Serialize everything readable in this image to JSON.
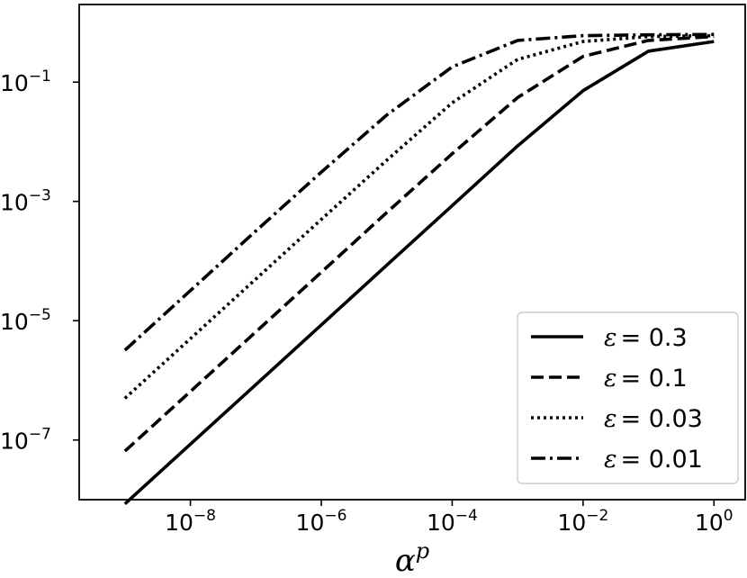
{
  "chart_data": {
    "type": "line",
    "xscale": "log",
    "yscale": "log",
    "xlim": [
      2e-10,
      3
    ],
    "ylim": [
      1e-08,
      2
    ],
    "xlabel": {
      "base": "α",
      "sup": "p"
    },
    "ylabel": "",
    "title": "",
    "grid": false,
    "legend_position": "lower-right",
    "x_ticks": [
      {
        "value": 1e-08,
        "base": "10",
        "exp": "−8"
      },
      {
        "value": 1e-06,
        "base": "10",
        "exp": "−6"
      },
      {
        "value": 0.0001,
        "base": "10",
        "exp": "−4"
      },
      {
        "value": 0.01,
        "base": "10",
        "exp": "−2"
      },
      {
        "value": 1,
        "base": "10",
        "exp": "0"
      }
    ],
    "y_ticks": [
      {
        "value": 0.1,
        "base": "10",
        "exp": "−1"
      },
      {
        "value": 0.001,
        "base": "10",
        "exp": "−3"
      },
      {
        "value": 1e-05,
        "base": "10",
        "exp": "−5"
      },
      {
        "value": 1e-07,
        "base": "10",
        "exp": "−7"
      }
    ],
    "x": [
      1e-09,
      1e-08,
      1e-07,
      1e-06,
      1e-05,
      0.0001,
      0.001,
      0.01,
      0.1,
      1
    ],
    "series": [
      {
        "name": "ε = 0.3",
        "eps_label": "ε",
        "value_label": "= 0.3",
        "dash": "solid",
        "values": [
          8.5e-09,
          8.5e-08,
          8.5e-07,
          8.5e-06,
          8.5e-05,
          0.00085,
          0.0085,
          0.072,
          0.33,
          0.48
        ]
      },
      {
        "name": "ε = 0.1",
        "eps_label": "ε",
        "value_label": "= 0.1",
        "dash": "dashed",
        "values": [
          6.5e-08,
          6.5e-07,
          6.5e-06,
          6.5e-05,
          0.00065,
          0.0063,
          0.055,
          0.27,
          0.5,
          0.58
        ]
      },
      {
        "name": "ε = 0.03",
        "eps_label": "ε",
        "value_label": "= 0.03",
        "dash": "dotted",
        "values": [
          5e-07,
          5e-06,
          5e-05,
          0.0005,
          0.0049,
          0.045,
          0.24,
          0.48,
          0.58,
          0.6
        ]
      },
      {
        "name": "ε = 0.01",
        "eps_label": "ε",
        "value_label": "= 0.01",
        "dash": "dashdot",
        "values": [
          3.2e-06,
          3.2e-05,
          0.00032,
          0.0031,
          0.028,
          0.18,
          0.5,
          0.6,
          0.62,
          0.63
        ]
      }
    ]
  }
}
